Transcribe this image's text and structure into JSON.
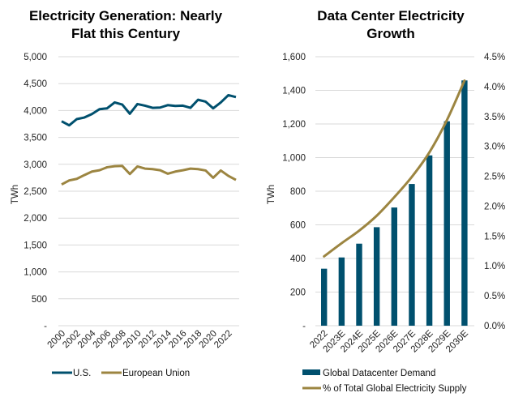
{
  "colors": {
    "teal": "#00506e",
    "gold": "#9c8541",
    "grid": "#d9d9d9"
  },
  "chart_data": [
    {
      "type": "line",
      "title": [
        "Electricity Generation: Nearly",
        "Flat this Century"
      ],
      "ylabel": "TWh",
      "ylim": [
        0,
        5000
      ],
      "yticks": [
        "-",
        "500",
        "1,000",
        "1,500",
        "2,000",
        "2,500",
        "3,000",
        "3,500",
        "4,000",
        "4,500",
        "5,000"
      ],
      "x": [
        2000,
        2001,
        2002,
        2003,
        2004,
        2005,
        2006,
        2007,
        2008,
        2009,
        2010,
        2011,
        2012,
        2013,
        2014,
        2015,
        2016,
        2017,
        2018,
        2019,
        2020,
        2021,
        2022,
        2023
      ],
      "xtick_labels": [
        "2000",
        "2002",
        "2004",
        "2006",
        "2008",
        "2010",
        "2012",
        "2014",
        "2016",
        "2018",
        "2020",
        "2022"
      ],
      "grid": true,
      "legend": "bottom",
      "series": [
        {
          "name": "U.S.",
          "color": "#00506e",
          "values": [
            3800,
            3725,
            3840,
            3870,
            3935,
            4025,
            4040,
            4150,
            4110,
            3940,
            4120,
            4090,
            4050,
            4055,
            4100,
            4085,
            4090,
            4050,
            4200,
            4165,
            4040,
            4150,
            4285,
            4250
          ]
        },
        {
          "name": "European Union",
          "color": "#9c8541",
          "values": [
            2625,
            2700,
            2730,
            2800,
            2865,
            2890,
            2945,
            2965,
            2970,
            2820,
            2960,
            2920,
            2910,
            2890,
            2825,
            2865,
            2890,
            2920,
            2910,
            2885,
            2750,
            2885,
            2785,
            2710
          ]
        }
      ]
    },
    {
      "type": "bar",
      "title": [
        "Data Center Electricity",
        "Growth"
      ],
      "ylabel": "TWh",
      "ylim": [
        0,
        1600
      ],
      "y2lim": [
        0,
        4.5
      ],
      "yticks": [
        "-",
        "200",
        "400",
        "600",
        "800",
        "1,000",
        "1,200",
        "1,400",
        "1,600"
      ],
      "y2ticks": [
        "0.0%",
        "0.5%",
        "1.0%",
        "1.5%",
        "2.0%",
        "2.5%",
        "3.0%",
        "3.5%",
        "4.0%",
        "4.5%"
      ],
      "categories": [
        "2022",
        "2023E",
        "2024E",
        "2025E",
        "2026E",
        "2027E",
        "2028E",
        "2029E",
        "2030E"
      ],
      "grid": true,
      "legend": "bottom",
      "series": [
        {
          "name": "Global Datacenter Demand",
          "type": "bar",
          "axis": "left",
          "color": "#00506e",
          "values": [
            339,
            406,
            488,
            586,
            703,
            843,
            1013,
            1216,
            1459
          ]
        },
        {
          "name": "% of Total Global Electricity Supply",
          "type": "line",
          "axis": "right",
          "color": "#9c8541",
          "values": [
            1.16,
            1.38,
            1.59,
            1.84,
            2.15,
            2.49,
            2.9,
            3.44,
            4.1
          ]
        }
      ]
    }
  ]
}
